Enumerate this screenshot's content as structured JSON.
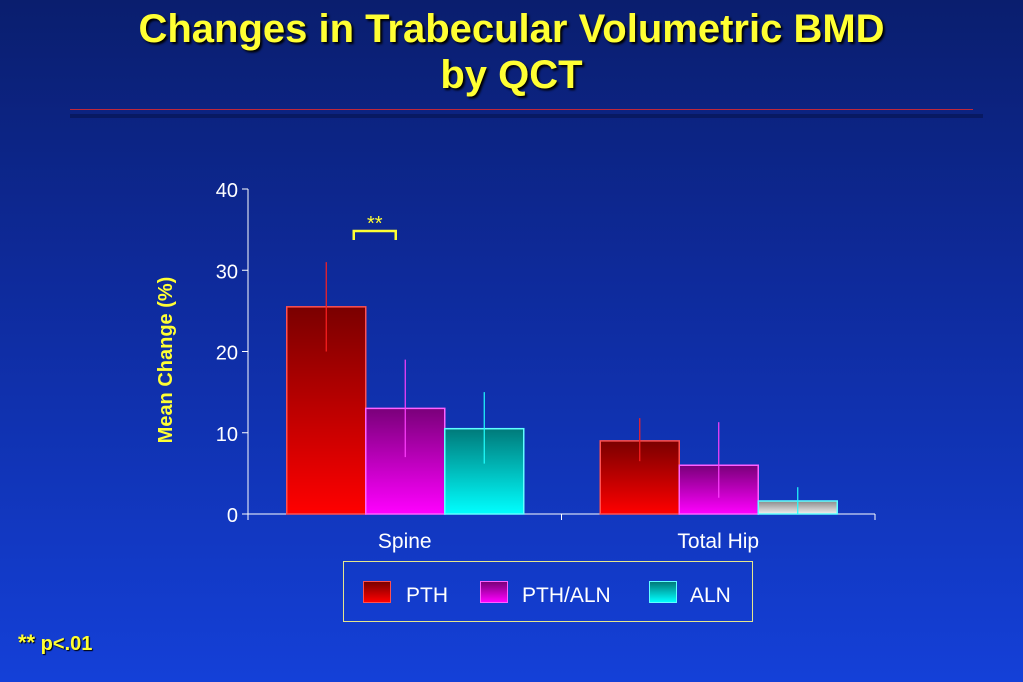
{
  "title": {
    "line1": "Changes in Trabecular Volumetric BMD",
    "line2": "by QCT"
  },
  "footnote": {
    "stars": "**",
    "text": " p<.01"
  },
  "colors": {
    "PTH": "#ff0000",
    "PTH/ALN": "#ff00ff",
    "ALN": "#00ffff",
    "axis_text": "#ffff33",
    "tick_text": "#ffffff"
  },
  "chart_data": {
    "type": "bar",
    "title": "Changes in Trabecular Volumetric BMD by QCT",
    "ylabel": "Mean Change (%)",
    "xlabel": "",
    "ylim": [
      0,
      40
    ],
    "yticks": [
      0,
      10,
      20,
      30,
      40
    ],
    "categories": [
      "Spine",
      "Total Hip"
    ],
    "series": [
      {
        "name": "PTH",
        "values": [
          25.5,
          9
        ],
        "error": [
          [
            20,
            31
          ],
          [
            6.5,
            11.8
          ]
        ]
      },
      {
        "name": "PTH/ALN",
        "values": [
          13,
          6
        ],
        "error": [
          [
            7,
            19
          ],
          [
            2,
            11.3
          ]
        ]
      },
      {
        "name": "ALN",
        "values": [
          10.5,
          1.6
        ],
        "error": [
          [
            6.2,
            15
          ],
          [
            0,
            3.3
          ]
        ]
      }
    ],
    "annotations": [
      {
        "text": "**",
        "category": "Spine",
        "between": [
          "PTH",
          "PTH/ALN"
        ]
      }
    ],
    "legend": "bottom-center",
    "grid": false
  }
}
